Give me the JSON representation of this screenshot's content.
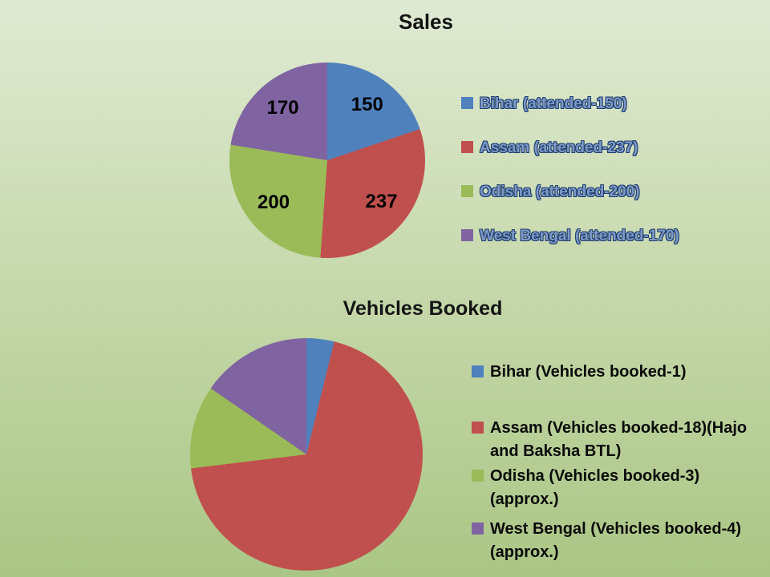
{
  "background": {
    "top_color": "#dfead3",
    "mid_color": "#c6d8ab",
    "bottom_color": "#aac685"
  },
  "chart_data": [
    {
      "type": "pie",
      "title": "Sales",
      "categories": [
        "Bihar",
        "Assam",
        "Odisha",
        "West Bengal"
      ],
      "values": [
        150,
        237,
        200,
        170
      ],
      "colors": [
        "#4f81bd",
        "#c0504d",
        "#9bbb59",
        "#8064a2"
      ],
      "data_labels": [
        "150",
        "237",
        "200",
        "170"
      ],
      "show_data_labels": true,
      "start_angle_deg": 0,
      "legend_position": "right",
      "legend_labels": [
        "Bihar (attended-150)",
        "Assam (attended-237)",
        "Odisha (attended-200)",
        "West Bengal (attended-170)"
      ]
    },
    {
      "type": "pie",
      "title": "Vehicles Booked",
      "categories": [
        "Bihar",
        "Assam",
        "Odisha",
        "West Bengal"
      ],
      "values": [
        1,
        18,
        3,
        4
      ],
      "colors": [
        "#4f81bd",
        "#c0504d",
        "#9bbb59",
        "#8064a2"
      ],
      "data_labels": [
        "1",
        "18",
        "3",
        "4"
      ],
      "show_data_labels": false,
      "start_angle_deg": 0,
      "legend_position": "right",
      "legend_labels": [
        "Bihar (Vehicles booked-1)",
        "Assam (Vehicles booked-18)(Hajo and Baksha BTL)",
        "Odisha (Vehicles booked-3)(approx.)",
        "West Bengal (Vehicles booked-4)(approx.)"
      ]
    }
  ]
}
